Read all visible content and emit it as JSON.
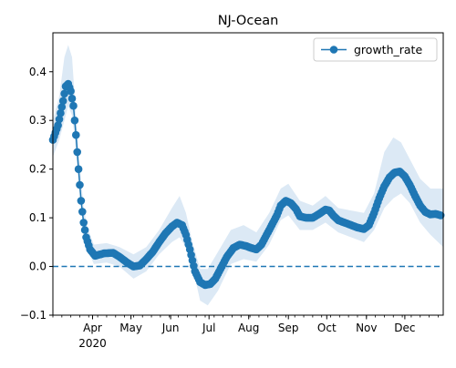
{
  "chart_data": {
    "type": "line",
    "title": "NJ-Ocean",
    "xlabel": "",
    "ylabel": "",
    "ylim": [
      -0.1,
      0.48
    ],
    "x_axis": {
      "range": [
        "2020-03-01",
        "2020-12-31"
      ],
      "month_ticks": [
        {
          "date": "2020-04-01",
          "label": "Apr",
          "sublabel": "2020"
        },
        {
          "date": "2020-05-01",
          "label": "May"
        },
        {
          "date": "2020-06-01",
          "label": "Jun"
        },
        {
          "date": "2020-07-01",
          "label": "Jul"
        },
        {
          "date": "2020-08-01",
          "label": "Aug"
        },
        {
          "date": "2020-09-01",
          "label": "Sep"
        },
        {
          "date": "2020-10-01",
          "label": "Oct"
        },
        {
          "date": "2020-11-01",
          "label": "Nov"
        },
        {
          "date": "2020-12-01",
          "label": "Dec"
        }
      ]
    },
    "y_ticks": [
      {
        "value": -0.1,
        "label": "−0.1"
      },
      {
        "value": 0.0,
        "label": "0.0"
      },
      {
        "value": 0.1,
        "label": "0.1"
      },
      {
        "value": 0.2,
        "label": "0.2"
      },
      {
        "value": 0.3,
        "label": "0.3"
      },
      {
        "value": 0.4,
        "label": "0.4"
      }
    ],
    "grid": false,
    "legend": {
      "position": "top-right",
      "entries": [
        "growth_rate"
      ]
    },
    "reference_line": {
      "y": 0.0,
      "style": "dashed"
    },
    "colors": {
      "series": "#1f77b4",
      "band": "#dce9f5",
      "reference": "#1f77b4"
    },
    "series": [
      {
        "name": "growth_rate",
        "points": [
          [
            "2020-03-01",
            0.26
          ],
          [
            "2020-03-05",
            0.29
          ],
          [
            "2020-03-09",
            0.34
          ],
          [
            "2020-03-11",
            0.37
          ],
          [
            "2020-03-13",
            0.375
          ],
          [
            "2020-03-15",
            0.36
          ],
          [
            "2020-03-17",
            0.33
          ],
          [
            "2020-03-19",
            0.27
          ],
          [
            "2020-03-21",
            0.2
          ],
          [
            "2020-03-23",
            0.135
          ],
          [
            "2020-03-25",
            0.09
          ],
          [
            "2020-03-27",
            0.06
          ],
          [
            "2020-03-30",
            0.035
          ],
          [
            "2020-04-03",
            0.022
          ],
          [
            "2020-04-10",
            0.027
          ],
          [
            "2020-04-17",
            0.028
          ],
          [
            "2020-04-22",
            0.02
          ],
          [
            "2020-04-28",
            0.008
          ],
          [
            "2020-05-03",
            0.0
          ],
          [
            "2020-05-08",
            0.002
          ],
          [
            "2020-05-13",
            0.015
          ],
          [
            "2020-05-18",
            0.03
          ],
          [
            "2020-05-23",
            0.05
          ],
          [
            "2020-05-28",
            0.068
          ],
          [
            "2020-06-02",
            0.082
          ],
          [
            "2020-06-06",
            0.09
          ],
          [
            "2020-06-10",
            0.085
          ],
          [
            "2020-06-13",
            0.065
          ],
          [
            "2020-06-16",
            0.035
          ],
          [
            "2020-06-20",
            -0.01
          ],
          [
            "2020-06-24",
            -0.032
          ],
          [
            "2020-06-28",
            -0.038
          ],
          [
            "2020-07-02",
            -0.036
          ],
          [
            "2020-07-06",
            -0.025
          ],
          [
            "2020-07-10",
            -0.005
          ],
          [
            "2020-07-15",
            0.02
          ],
          [
            "2020-07-20",
            0.038
          ],
          [
            "2020-07-25",
            0.045
          ],
          [
            "2020-07-30",
            0.042
          ],
          [
            "2020-08-03",
            0.038
          ],
          [
            "2020-08-07",
            0.035
          ],
          [
            "2020-08-11",
            0.045
          ],
          [
            "2020-08-15",
            0.065
          ],
          [
            "2020-08-19",
            0.085
          ],
          [
            "2020-08-23",
            0.105
          ],
          [
            "2020-08-26",
            0.125
          ],
          [
            "2020-08-30",
            0.135
          ],
          [
            "2020-09-03",
            0.13
          ],
          [
            "2020-09-07",
            0.118
          ],
          [
            "2020-09-10",
            0.103
          ],
          [
            "2020-09-15",
            0.1
          ],
          [
            "2020-09-20",
            0.1
          ],
          [
            "2020-09-25",
            0.108
          ],
          [
            "2020-09-30",
            0.117
          ],
          [
            "2020-10-03",
            0.115
          ],
          [
            "2020-10-06",
            0.105
          ],
          [
            "2020-10-10",
            0.095
          ],
          [
            "2020-10-15",
            0.09
          ],
          [
            "2020-10-20",
            0.085
          ],
          [
            "2020-10-25",
            0.08
          ],
          [
            "2020-10-30",
            0.077
          ],
          [
            "2020-11-03",
            0.085
          ],
          [
            "2020-11-07",
            0.11
          ],
          [
            "2020-11-11",
            0.14
          ],
          [
            "2020-11-15",
            0.165
          ],
          [
            "2020-11-19",
            0.183
          ],
          [
            "2020-11-23",
            0.193
          ],
          [
            "2020-11-27",
            0.195
          ],
          [
            "2020-12-01",
            0.185
          ],
          [
            "2020-12-05",
            0.167
          ],
          [
            "2020-12-09",
            0.145
          ],
          [
            "2020-12-13",
            0.125
          ],
          [
            "2020-12-17",
            0.112
          ],
          [
            "2020-12-21",
            0.107
          ],
          [
            "2020-12-25",
            0.108
          ],
          [
            "2020-12-29",
            0.105
          ]
        ],
        "interval": [
          [
            "2020-03-01",
            0.225,
            0.3
          ],
          [
            "2020-03-06",
            0.26,
            0.35
          ],
          [
            "2020-03-10",
            0.3,
            0.43
          ],
          [
            "2020-03-13",
            0.33,
            0.455
          ],
          [
            "2020-03-16",
            0.31,
            0.43
          ],
          [
            "2020-03-19",
            0.24,
            0.31
          ],
          [
            "2020-03-22",
            0.15,
            0.21
          ],
          [
            "2020-03-25",
            0.07,
            0.12
          ],
          [
            "2020-03-28",
            0.035,
            0.08
          ],
          [
            "2020-04-02",
            0.005,
            0.045
          ],
          [
            "2020-04-12",
            0.008,
            0.048
          ],
          [
            "2020-04-22",
            0.0,
            0.04
          ],
          [
            "2020-05-03",
            -0.025,
            0.025
          ],
          [
            "2020-05-13",
            -0.01,
            0.04
          ],
          [
            "2020-05-23",
            0.025,
            0.075
          ],
          [
            "2020-06-02",
            0.05,
            0.12
          ],
          [
            "2020-06-08",
            0.06,
            0.145
          ],
          [
            "2020-06-13",
            0.04,
            0.11
          ],
          [
            "2020-06-18",
            0.0,
            0.05
          ],
          [
            "2020-06-24",
            -0.07,
            -0.005
          ],
          [
            "2020-06-30",
            -0.08,
            -0.005
          ],
          [
            "2020-07-08",
            -0.05,
            0.03
          ],
          [
            "2020-07-18",
            0.005,
            0.075
          ],
          [
            "2020-07-28",
            0.015,
            0.085
          ],
          [
            "2020-08-07",
            0.01,
            0.07
          ],
          [
            "2020-08-17",
            0.045,
            0.11
          ],
          [
            "2020-08-26",
            0.095,
            0.16
          ],
          [
            "2020-09-01",
            0.105,
            0.17
          ],
          [
            "2020-09-10",
            0.075,
            0.135
          ],
          [
            "2020-09-20",
            0.075,
            0.125
          ],
          [
            "2020-09-30",
            0.09,
            0.145
          ],
          [
            "2020-10-10",
            0.07,
            0.12
          ],
          [
            "2020-10-20",
            0.06,
            0.115
          ],
          [
            "2020-10-30",
            0.05,
            0.11
          ],
          [
            "2020-11-07",
            0.075,
            0.15
          ],
          [
            "2020-11-15",
            0.12,
            0.235
          ],
          [
            "2020-11-22",
            0.14,
            0.265
          ],
          [
            "2020-11-28",
            0.15,
            0.255
          ],
          [
            "2020-12-05",
            0.13,
            0.22
          ],
          [
            "2020-12-13",
            0.09,
            0.18
          ],
          [
            "2020-12-21",
            0.065,
            0.16
          ],
          [
            "2020-12-31",
            0.04,
            0.16
          ]
        ]
      }
    ]
  }
}
